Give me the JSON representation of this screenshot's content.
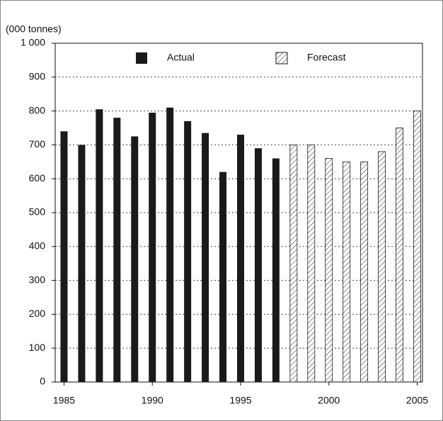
{
  "chart_data": {
    "type": "bar",
    "y_label": "(000 tonnes)",
    "x": [
      1985,
      1986,
      1987,
      1988,
      1989,
      1990,
      1991,
      1992,
      1993,
      1994,
      1995,
      1996,
      1997,
      1998,
      1999,
      2000,
      2001,
      2002,
      2003,
      2004,
      2005
    ],
    "series": [
      {
        "name": "Actual",
        "color": "#1a1a1a",
        "hatch": false,
        "values": [
          740,
          700,
          805,
          780,
          725,
          795,
          810,
          770,
          735,
          620,
          730,
          690,
          660,
          null,
          null,
          null,
          null,
          null,
          null,
          null,
          null
        ]
      },
      {
        "name": "Forecast",
        "color": "#1a1a1a",
        "hatch": true,
        "values": [
          null,
          null,
          null,
          null,
          null,
          null,
          null,
          null,
          null,
          null,
          null,
          null,
          null,
          700,
          700,
          660,
          650,
          650,
          680,
          750,
          800
        ]
      }
    ],
    "xlim": [
      1984.5,
      2005.3
    ],
    "xticks": [
      1985,
      1990,
      1995,
      2000,
      2005
    ],
    "ylim": [
      0,
      1000
    ],
    "yticks": [
      0,
      100,
      200,
      300,
      400,
      500,
      600,
      700,
      800,
      900,
      {
        "value": 1000,
        "label": "1 000"
      }
    ],
    "grid": true
  }
}
